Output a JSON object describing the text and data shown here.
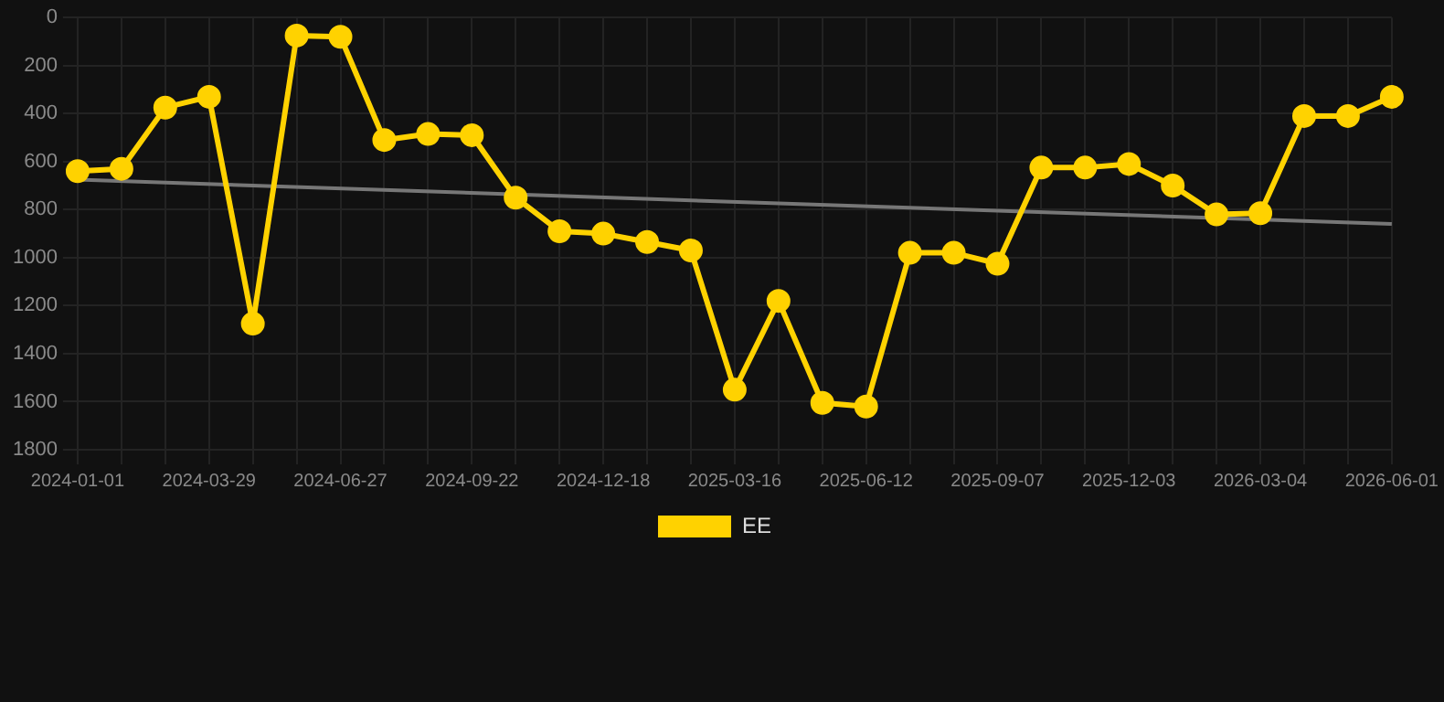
{
  "chart_data": {
    "type": "line",
    "categories": [
      "2024-01-01",
      null,
      null,
      "2024-03-29",
      null,
      null,
      "2024-06-27",
      null,
      null,
      "2024-09-22",
      null,
      null,
      "2024-12-18",
      null,
      null,
      "2025-03-16",
      null,
      null,
      "2025-06-12",
      null,
      null,
      "2025-09-07",
      null,
      null,
      "2025-12-03",
      null,
      null,
      "2026-03-04",
      null,
      null,
      "2026-06-01"
    ],
    "series": [
      {
        "name": "EE",
        "color": "#ffd200",
        "values": [
          640,
          630,
          375,
          330,
          1275,
          75,
          80,
          510,
          485,
          490,
          750,
          890,
          900,
          935,
          970,
          1550,
          1180,
          1605,
          1620,
          980,
          980,
          1025,
          625,
          625,
          610,
          700,
          820,
          815,
          410,
          410,
          330
        ]
      },
      {
        "type": "line",
        "color": "#777777",
        "marker": "none",
        "values": [
          675,
          null,
          null,
          null,
          null,
          null,
          null,
          null,
          null,
          null,
          null,
          null,
          null,
          null,
          null,
          null,
          null,
          null,
          null,
          null,
          null,
          null,
          null,
          null,
          null,
          null,
          null,
          null,
          null,
          null,
          860
        ]
      }
    ],
    "ylim": [
      1800,
      0
    ],
    "yticks": [
      0,
      200,
      400,
      600,
      800,
      1000,
      1200,
      1400,
      1600,
      1800
    ],
    "grid": true,
    "legend": "bottom",
    "marker": "circle",
    "line_style": "solid"
  }
}
